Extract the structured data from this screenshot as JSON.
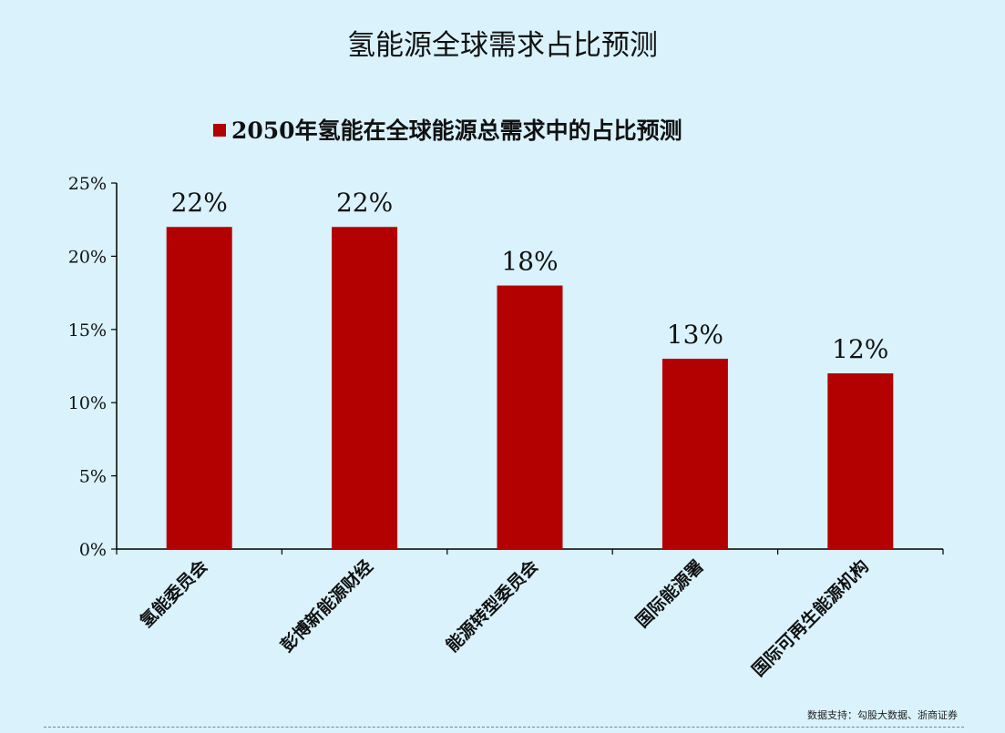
{
  "title": "氢能源全球需求占比预测",
  "source": "数据支持：勾股大数据、浙商证券",
  "colors": {
    "bar": "#b30000",
    "background": "#d9f2fb",
    "axis": "#000000"
  },
  "chart_data": {
    "type": "bar",
    "title": "氢能源全球需求占比预测",
    "legend_position": "top",
    "categories": [
      "氢能委员会",
      "彭博新能源财经",
      "能源转型委员会",
      "国际能源署",
      "国际可再生能源机构"
    ],
    "series": [
      {
        "name": "2050年氢能在全球能源总需求中的占比预测",
        "values": [
          22,
          22,
          18,
          13,
          12
        ]
      }
    ],
    "data_labels": [
      "22%",
      "22%",
      "18%",
      "13%",
      "12%"
    ],
    "yticks": [
      "0%",
      "5%",
      "10%",
      "15%",
      "20%",
      "25%"
    ],
    "ylim": [
      0,
      25
    ],
    "grid": false
  }
}
